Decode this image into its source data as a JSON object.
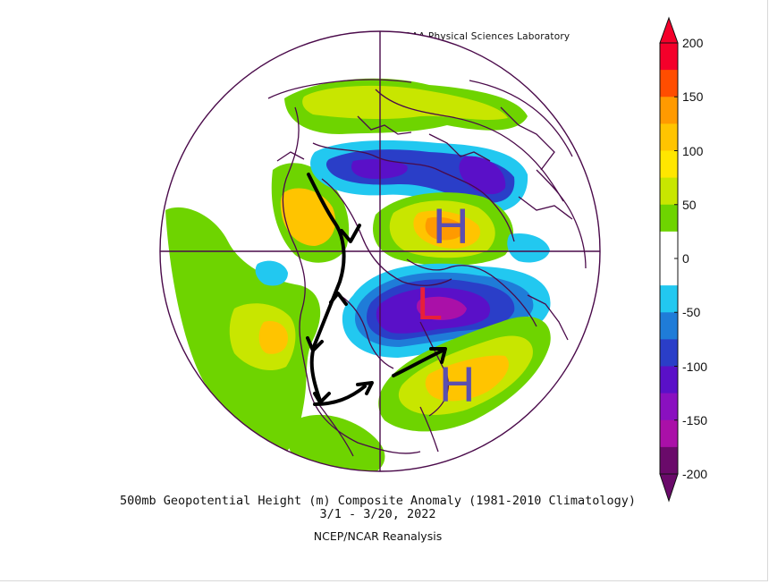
{
  "credit": "NOAA Physical Sciences Laboratory",
  "caption": {
    "title": "500mb Geopotential Height (m) Composite Anomaly (1981-2010 Climatology)",
    "dates": "3/1 - 3/20, 2022",
    "source": "NCEP/NCAR Reanalysis"
  },
  "colorbar": {
    "ticks": [
      "200",
      "150",
      "100",
      "50",
      "0",
      "-50",
      "-100",
      "-150",
      "-200"
    ],
    "colors": [
      "#f4002a",
      "#ff4d00",
      "#ff9a00",
      "#ffc400",
      "#ffe600",
      "#c8e600",
      "#6ed400",
      "#ffffff",
      "#ffffff",
      "#22c8f0",
      "#1f7cd8",
      "#2a3ec8",
      "#5a10c8",
      "#8a10c0",
      "#aa10a8",
      "#6a0a6a"
    ]
  },
  "annotations": {
    "high_north": "H",
    "low_east": "L",
    "high_southeast": "H"
  },
  "anomaly_colors": {
    "high_strong": "#ffc400",
    "high_mid": "#c8e600",
    "high_weak": "#6ed400",
    "low_weak": "#22c8f0",
    "low_mid": "#2a3ec8",
    "low_strong": "#6a0fd0",
    "low_extreme": "#aa10a8",
    "boundary_line": "#4a0a4a"
  }
}
